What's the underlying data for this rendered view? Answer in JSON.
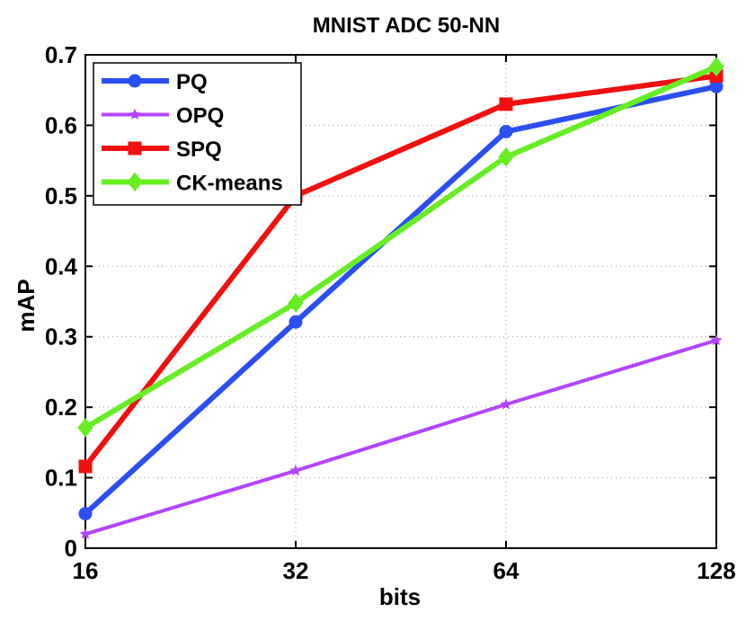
{
  "chart_data": {
    "type": "line",
    "title": "MNIST ADC 50-NN",
    "xlabel": "bits",
    "ylabel": "mAP",
    "categories": [
      "16",
      "32",
      "64",
      "128"
    ],
    "x": [
      16,
      32,
      64,
      128
    ],
    "x_scale": "log2",
    "ylim": [
      0,
      0.7
    ],
    "yticks": [
      "0",
      "0.1",
      "0.2",
      "0.3",
      "0.4",
      "0.5",
      "0.6",
      "0.7"
    ],
    "ytick_values": [
      0,
      0.1,
      0.2,
      0.3,
      0.4,
      0.5,
      0.6,
      0.7
    ],
    "grid": true,
    "legend_position": "top-left",
    "series": [
      {
        "name": "PQ",
        "color": "#2b4ff0",
        "marker": "circle",
        "values": [
          0.049,
          0.321,
          0.591,
          0.655
        ]
      },
      {
        "name": "OPQ",
        "color": "#b244ff",
        "marker": "star",
        "values": [
          0.02,
          0.11,
          0.204,
          0.295
        ]
      },
      {
        "name": "SPQ",
        "color": "#f01010",
        "marker": "square",
        "values": [
          0.116,
          0.5,
          0.63,
          0.67
        ]
      },
      {
        "name": "CK-means",
        "color": "#66ee22",
        "marker": "diamond",
        "values": [
          0.171,
          0.348,
          0.555,
          0.683
        ]
      }
    ]
  }
}
